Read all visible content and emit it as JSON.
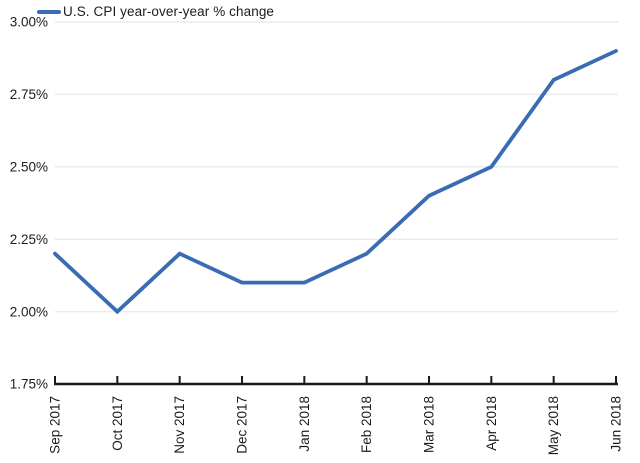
{
  "chart": {
    "legend_label": "U.S. CPI year-over-year % change",
    "colors": {
      "line": "#3a6cb3",
      "grid": "#ebebeb",
      "axis": "#191919",
      "text": "#1c1c1c",
      "background": "#ffffff"
    }
  },
  "chart_data": {
    "type": "line",
    "title": "U.S. CPI year-over-year % change",
    "categories": [
      "Sep 2017",
      "Oct 2017",
      "Nov 2017",
      "Dec 2017",
      "Jan 2018",
      "Feb 2018",
      "Mar 2018",
      "Apr 2018",
      "May 2018",
      "Jun 2018"
    ],
    "series": [
      {
        "name": "U.S. CPI year-over-year % change",
        "values": [
          2.2,
          2.0,
          2.2,
          2.1,
          2.1,
          2.2,
          2.4,
          2.5,
          2.8,
          2.9
        ]
      }
    ],
    "xlabel": "",
    "ylabel": "",
    "ylim": [
      1.75,
      3.0
    ],
    "ytick_step": 0.25,
    "ytick_labels": [
      "3.00%",
      "2.75%",
      "2.50%",
      "2.25%",
      "2.00%",
      "1.75%"
    ],
    "grid": true,
    "legend_position": "top-left"
  }
}
